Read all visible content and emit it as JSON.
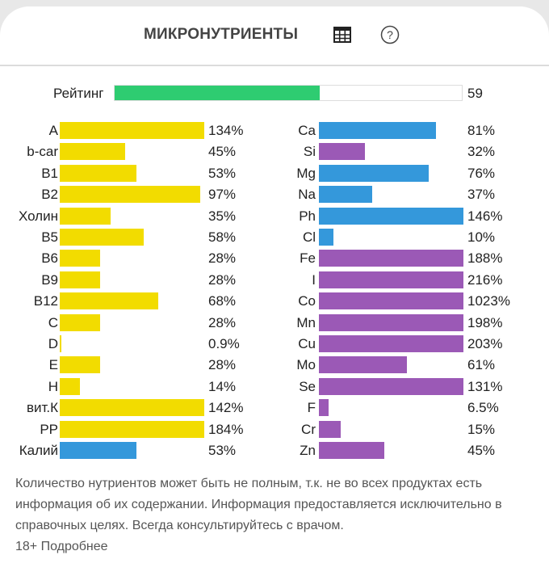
{
  "header": {
    "title": "МИКРОНУТРИЕНТЫ",
    "table_icon": "table-icon",
    "help_icon": "help-circle-icon"
  },
  "rating": {
    "label": "Рейтинг",
    "value": "59",
    "percent": 59,
    "color": "#2ecc71"
  },
  "colors": {
    "vitamin": "#f2dc00",
    "macro": "#3498db",
    "micro": "#9b59b6"
  },
  "left_items": [
    {
      "label": "A",
      "value": "134%",
      "percent": 134,
      "type": "vitamin"
    },
    {
      "label": "b-car",
      "value": "45%",
      "percent": 45,
      "type": "vitamin"
    },
    {
      "label": "B1",
      "value": "53%",
      "percent": 53,
      "type": "vitamin"
    },
    {
      "label": "B2",
      "value": "97%",
      "percent": 97,
      "type": "vitamin"
    },
    {
      "label": "Холин",
      "value": "35%",
      "percent": 35,
      "type": "vitamin"
    },
    {
      "label": "B5",
      "value": "58%",
      "percent": 58,
      "type": "vitamin"
    },
    {
      "label": "B6",
      "value": "28%",
      "percent": 28,
      "type": "vitamin"
    },
    {
      "label": "B9",
      "value": "28%",
      "percent": 28,
      "type": "vitamin"
    },
    {
      "label": "B12",
      "value": "68%",
      "percent": 68,
      "type": "vitamin"
    },
    {
      "label": "C",
      "value": "28%",
      "percent": 28,
      "type": "vitamin"
    },
    {
      "label": "D",
      "value": "0.9%",
      "percent": 0.9,
      "type": "vitamin"
    },
    {
      "label": "E",
      "value": "28%",
      "percent": 28,
      "type": "vitamin"
    },
    {
      "label": "H",
      "value": "14%",
      "percent": 14,
      "type": "vitamin"
    },
    {
      "label": "вит.К",
      "value": "142%",
      "percent": 142,
      "type": "vitamin"
    },
    {
      "label": "PP",
      "value": "184%",
      "percent": 184,
      "type": "vitamin"
    },
    {
      "label": "Калий",
      "value": "53%",
      "percent": 53,
      "type": "macro"
    }
  ],
  "right_items": [
    {
      "label": "Ca",
      "value": "81%",
      "percent": 81,
      "type": "macro"
    },
    {
      "label": "Si",
      "value": "32%",
      "percent": 32,
      "type": "micro"
    },
    {
      "label": "Mg",
      "value": "76%",
      "percent": 76,
      "type": "macro"
    },
    {
      "label": "Na",
      "value": "37%",
      "percent": 37,
      "type": "macro"
    },
    {
      "label": "Ph",
      "value": "146%",
      "percent": 146,
      "type": "macro"
    },
    {
      "label": "Cl",
      "value": "10%",
      "percent": 10,
      "type": "macro"
    },
    {
      "label": "Fe",
      "value": "188%",
      "percent": 188,
      "type": "micro"
    },
    {
      "label": "I",
      "value": "216%",
      "percent": 216,
      "type": "micro"
    },
    {
      "label": "Co",
      "value": "1023%",
      "percent": 1023,
      "type": "micro"
    },
    {
      "label": "Mn",
      "value": "198%",
      "percent": 198,
      "type": "micro"
    },
    {
      "label": "Cu",
      "value": "203%",
      "percent": 203,
      "type": "micro"
    },
    {
      "label": "Mo",
      "value": "61%",
      "percent": 61,
      "type": "micro"
    },
    {
      "label": "Se",
      "value": "131%",
      "percent": 131,
      "type": "micro"
    },
    {
      "label": "F",
      "value": "6.5%",
      "percent": 6.5,
      "type": "micro"
    },
    {
      "label": "Cr",
      "value": "15%",
      "percent": 15,
      "type": "micro"
    },
    {
      "label": "Zn",
      "value": "45%",
      "percent": 45,
      "type": "micro"
    }
  ],
  "note": {
    "text": "Количество нутриентов может быть не полным, т.к. не во всех продуктах есть информация об их содержании. Информация предоставляется исключительно в справочных целях. Всегда консультируйтесь с врачом.",
    "more_link": "18+ Подробнее"
  }
}
